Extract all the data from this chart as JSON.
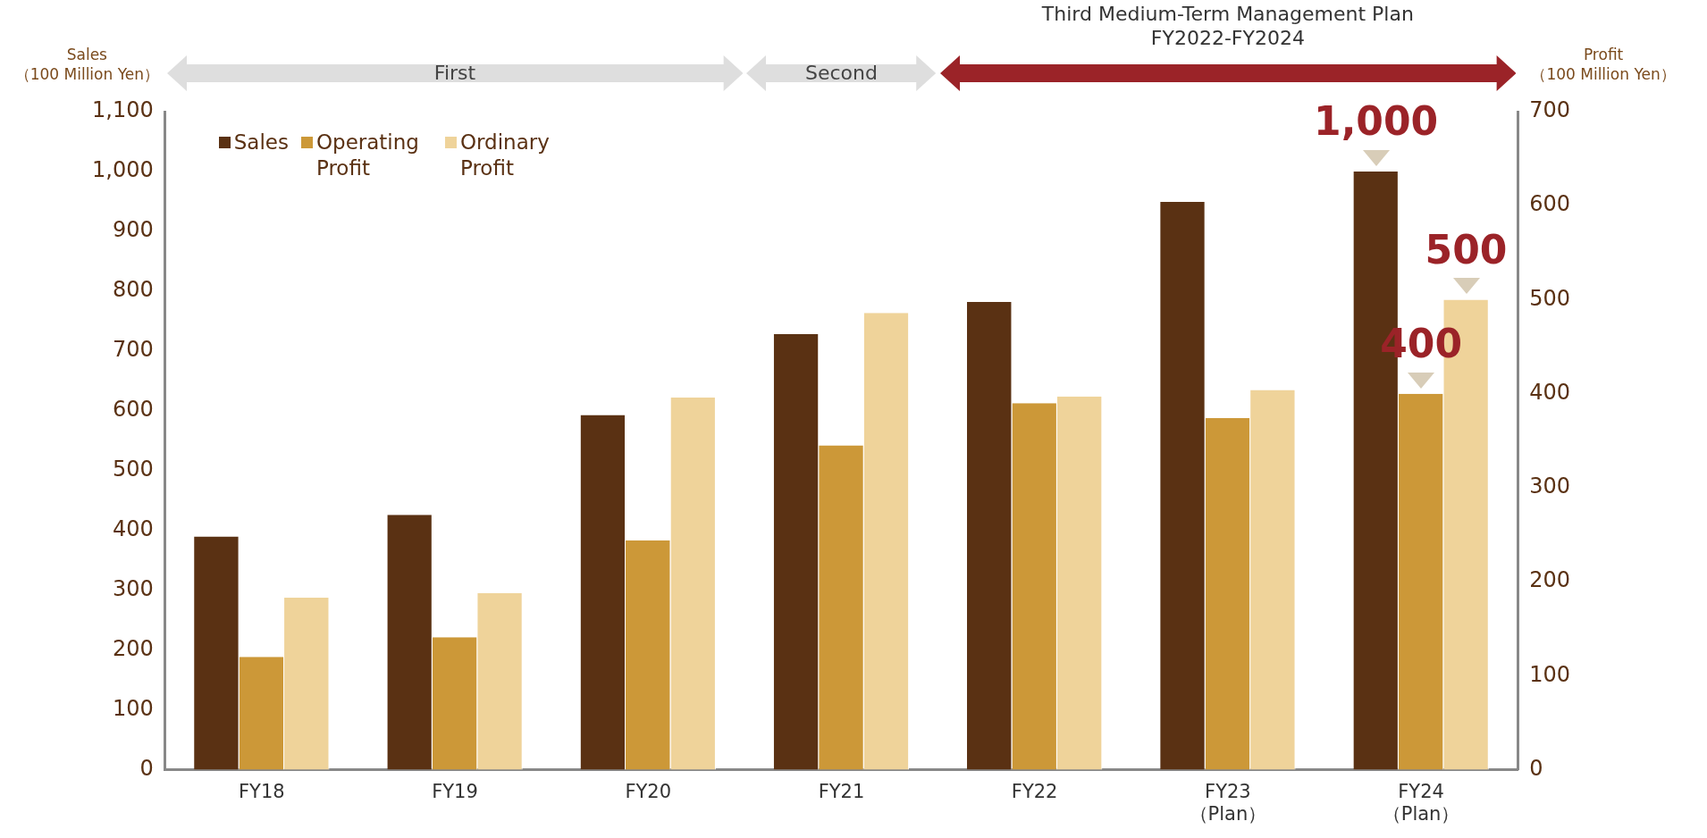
{
  "chart_data": {
    "type": "bar",
    "ylabel": "Sales\n（100 Million Yen）",
    "y2label": "Profit\n（100 Million Yen）",
    "annotations": [
      "First",
      "Second",
      "Third Medium-Term Management Plan\nFY2022-FY2024"
    ],
    "categories": [
      "FY18",
      "FY19",
      "FY20",
      "FY21",
      "FY22",
      "FY23\n（Plan）",
      "FY24\n（Plan）"
    ],
    "series": [
      {
        "name": "Sales",
        "color": "#5a3113",
        "values": [
          390,
          426,
          593,
          728,
          782,
          949,
          1000
        ],
        "value_labels": [
          null,
          null,
          null,
          null,
          null,
          null,
          "1,000"
        ]
      },
      {
        "name": "Operating Profit",
        "color": "#cc9838",
        "axis": "y2",
        "values": [
          120,
          141,
          244,
          345,
          390,
          374,
          400
        ],
        "value_labels": [
          null,
          null,
          null,
          null,
          null,
          null,
          "400"
        ]
      },
      {
        "name": "Ordinary Profit",
        "color": "#efd39a",
        "axis": "y2",
        "values": [
          183,
          188,
          396,
          486,
          397,
          404,
          500
        ],
        "value_labels": [
          null,
          null,
          null,
          null,
          null,
          null,
          "500"
        ]
      }
    ],
    "ylim": [
      0,
      1100
    ],
    "yticks": [
      0,
      100,
      200,
      300,
      400,
      500,
      600,
      700,
      800,
      900,
      {
        "value": 1000,
        "label": "1,000"
      },
      {
        "value": 1100,
        "label": "1,100"
      }
    ],
    "y2lim": [
      0,
      700
    ],
    "y2ticks": [
      0,
      100,
      200,
      300,
      400,
      500,
      600,
      700
    ],
    "grid": false,
    "legend": "top left"
  }
}
